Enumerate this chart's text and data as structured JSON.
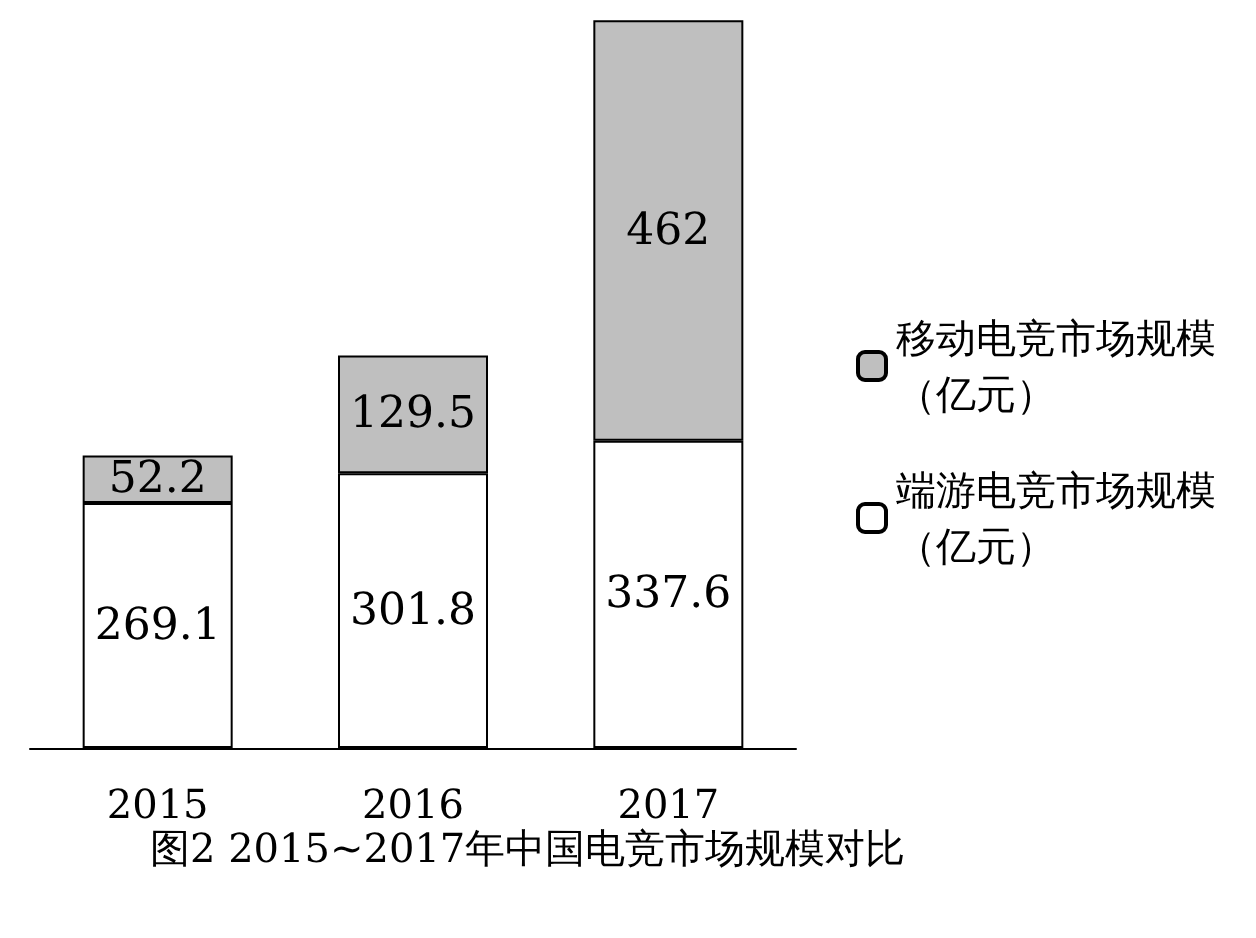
{
  "chart_data": {
    "type": "bar",
    "title": "图2 2015~2017年中国电竞市场规模对比",
    "categories": [
      "2015",
      "2016",
      "2017"
    ],
    "stacked": true,
    "data_labels": true,
    "legend": "right",
    "series": [
      {
        "name": "端游电竞市场规模（亿元）",
        "color": "#ffffff",
        "values": [
          269.1,
          301.8,
          337.6
        ]
      },
      {
        "name": "移动电竞市场规模（亿元）",
        "color": "#bfbfbf",
        "values": [
          52.2,
          129.5,
          462
        ]
      }
    ]
  }
}
